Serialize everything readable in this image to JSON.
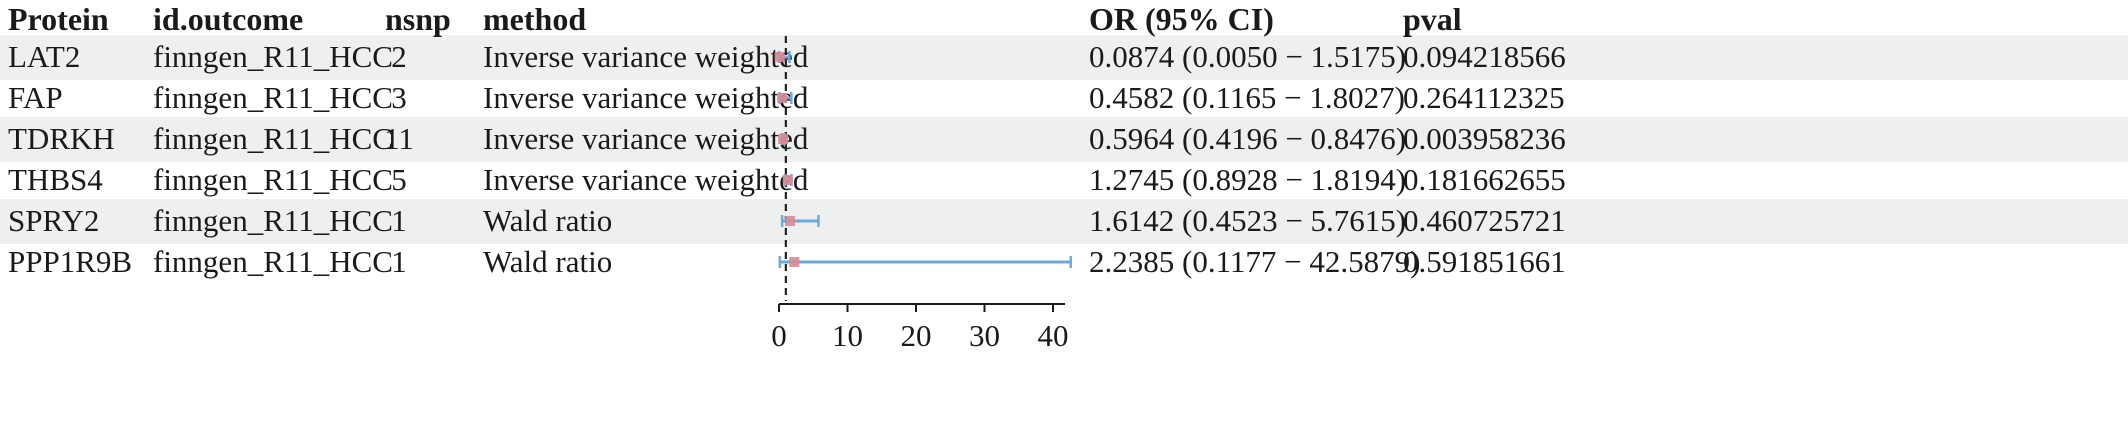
{
  "chart_data": {
    "type": "forest",
    "columns": [
      "Protein",
      "id.outcome",
      "nsnp",
      "method",
      "OR (95% CI)",
      "pval"
    ],
    "rows": [
      {
        "protein": "LAT2",
        "outcome": "finngen_R11_HCC",
        "nsnp": "2",
        "method": "Inverse variance weighted",
        "or_ci": "0.0874 (0.0050 − 1.5175)",
        "pval": "0.094218566",
        "or": 0.0874,
        "lo": 0.005,
        "hi": 1.5175
      },
      {
        "protein": "FAP",
        "outcome": "finngen_R11_HCC",
        "nsnp": "3",
        "method": "Inverse variance weighted",
        "or_ci": "0.4582 (0.1165 − 1.8027)",
        "pval": "0.264112325",
        "or": 0.4582,
        "lo": 0.1165,
        "hi": 1.8027
      },
      {
        "protein": "TDRKH",
        "outcome": "finngen_R11_HCC",
        "nsnp": "11",
        "method": "Inverse variance weighted",
        "or_ci": "0.5964 (0.4196 − 0.8476)",
        "pval": "0.003958236",
        "or": 0.5964,
        "lo": 0.4196,
        "hi": 0.8476
      },
      {
        "protein": "THBS4",
        "outcome": "finngen_R11_HCC",
        "nsnp": "5",
        "method": "Inverse variance weighted",
        "or_ci": "1.2745 (0.8928 − 1.8194)",
        "pval": "0.181662655",
        "or": 1.2745,
        "lo": 0.8928,
        "hi": 1.8194
      },
      {
        "protein": "SPRY2",
        "outcome": "finngen_R11_HCC",
        "nsnp": "1",
        "method": "Wald ratio",
        "or_ci": "1.6142 (0.4523 − 5.7615)",
        "pval": "0.460725721",
        "or": 1.6142,
        "lo": 0.4523,
        "hi": 5.7615
      },
      {
        "protein": "PPP1R9B",
        "outcome": "finngen_R11_HCC",
        "nsnp": "1",
        "method": "Wald ratio",
        "or_ci": "2.2385 (0.1177 − 42.5879)",
        "pval": "0.591851661",
        "or": 2.2385,
        "lo": 0.1177,
        "hi": 42.5879
      }
    ],
    "x_axis": {
      "ticks": [
        0,
        10,
        20,
        30,
        40
      ],
      "range": [
        0,
        43
      ]
    },
    "reference_line": 1,
    "colors": {
      "ci_line": "#6fa8dc",
      "point": "#d98a95",
      "ref_line": "#222222",
      "row_band": "#eef0ef"
    }
  }
}
